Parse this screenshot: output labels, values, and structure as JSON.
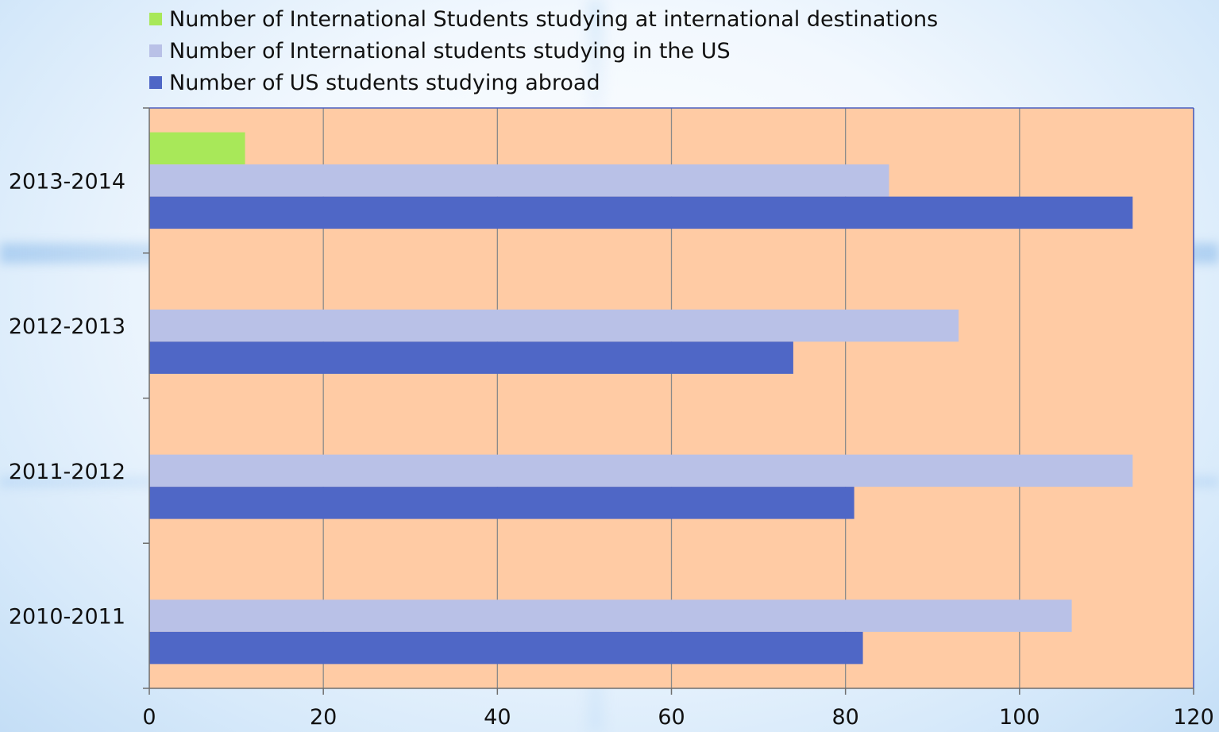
{
  "chart_data": {
    "type": "bar",
    "orientation": "horizontal",
    "categories": [
      "2010-2011",
      "2011-2012",
      "2012-2013",
      "2013-2014"
    ],
    "series": [
      {
        "name": "Number of US students studying abroad",
        "color": "#4f67c6",
        "values": [
          82,
          81,
          74,
          113
        ]
      },
      {
        "name": "Number of International students studying in the US",
        "color": "#b9c1e7",
        "values": [
          106,
          113,
          93,
          85
        ]
      },
      {
        "name": "Number of International Students studying at international destinations",
        "color": "#a8e859",
        "values": [
          null,
          null,
          null,
          11
        ]
      }
    ],
    "xlim": [
      0,
      120
    ],
    "xticks": [
      0,
      20,
      40,
      60,
      80,
      100,
      120
    ],
    "grid": "vertical",
    "legend_position": "top-left",
    "plot_background": "#ffcba4",
    "axis_color": "#4a5fc0",
    "gridline_color": "#8a8a8a"
  }
}
